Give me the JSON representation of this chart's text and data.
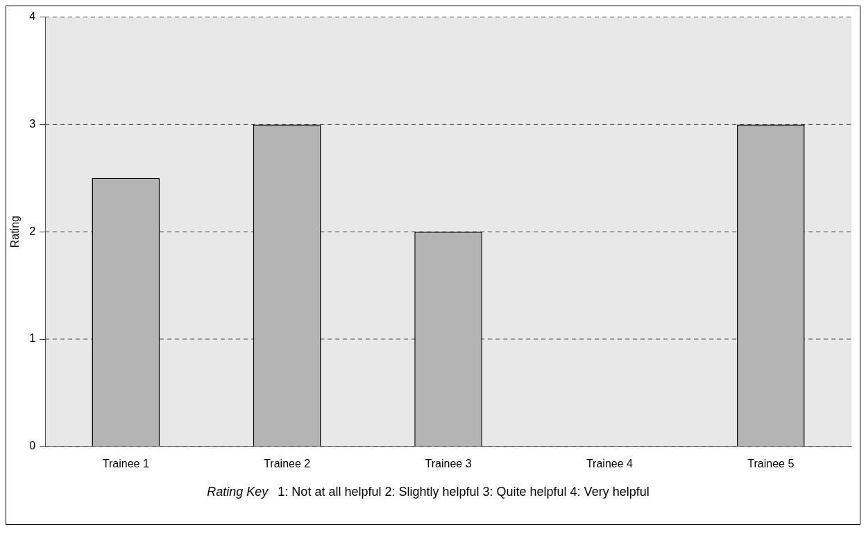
{
  "chart_data": {
    "type": "bar",
    "ylabel": "Rating",
    "categories": [
      "Trainee 1",
      "Trainee 2",
      "Trainee 3",
      "Trainee 4",
      "Trainee 5"
    ],
    "values": [
      2.5,
      3,
      2,
      0,
      3
    ],
    "color": "#b4b4b4",
    "ylim": [
      0,
      4
    ],
    "yticks": [
      0,
      1,
      2,
      3,
      4
    ],
    "grid": "y",
    "legend": false,
    "annotations": [
      "Rating Key",
      "1: Not at all helpful   2: Slightly helpful   3: Quite helpful   4: Very helpful"
    ]
  }
}
